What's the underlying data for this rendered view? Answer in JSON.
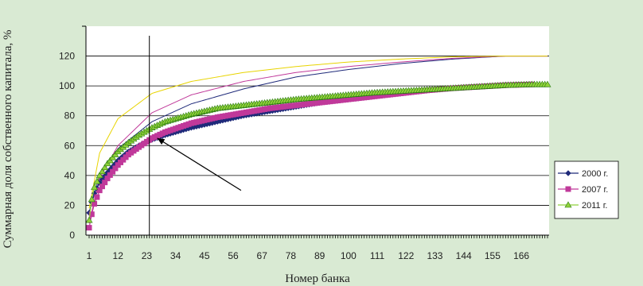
{
  "chart_data": {
    "type": "line",
    "xlabel": "Номер банка",
    "ylabel": "Суммарная доля собственного капитала, %",
    "x_ticks": [
      1,
      12,
      23,
      34,
      45,
      56,
      67,
      78,
      89,
      100,
      111,
      122,
      133,
      144,
      155,
      166
    ],
    "y_ticks": [
      0,
      20,
      40,
      60,
      80,
      100,
      120
    ],
    "xlim": [
      1,
      176
    ],
    "ylim": [
      0,
      140
    ],
    "grid": true,
    "legend_position": "right",
    "vertical_line_x": 24,
    "arrow": {
      "from": [
        59,
        30
      ],
      "to": [
        27,
        65
      ]
    },
    "series": [
      {
        "name": "2000 г.",
        "color": "#1f2a7a",
        "marker": "diamond",
        "x": [
          1,
          2,
          3,
          5,
          8,
          12,
          16,
          20,
          25,
          30,
          40,
          50,
          60,
          70,
          80,
          90,
          100,
          110,
          120,
          130,
          140,
          150,
          160,
          165
        ],
        "y": [
          15,
          22,
          28,
          35,
          42,
          50,
          56,
          60,
          64,
          67,
          72,
          76,
          80,
          83,
          86,
          89,
          91,
          93,
          95,
          97,
          98.5,
          99.5,
          100.5,
          101
        ]
      },
      {
        "name": "2007 г.",
        "color": "#c0399a",
        "marker": "square",
        "x": [
          1,
          2,
          3,
          5,
          8,
          12,
          16,
          20,
          25,
          30,
          40,
          50,
          60,
          70,
          80,
          90,
          100,
          110,
          120,
          130,
          140,
          150,
          160,
          170
        ],
        "y": [
          5,
          14,
          21,
          30,
          38,
          47,
          54,
          59,
          65,
          69,
          75,
          79,
          82,
          85,
          87,
          89,
          91,
          93,
          95,
          97,
          98.5,
          99.5,
          100.5,
          101
        ]
      },
      {
        "name": "2011 г.",
        "color": "#8fd13a",
        "marker": "triangle",
        "x": [
          1,
          2,
          3,
          5,
          8,
          12,
          16,
          20,
          25,
          30,
          40,
          50,
          60,
          70,
          80,
          90,
          100,
          110,
          120,
          130,
          140,
          150,
          160,
          170,
          176
        ],
        "y": [
          10,
          24,
          32,
          40,
          48,
          56,
          62,
          67,
          72,
          76,
          81,
          85,
          87,
          89,
          91,
          92.5,
          94,
          95.5,
          96.5,
          97.5,
          98.5,
          99.5,
          100.5,
          101,
          101
        ]
      }
    ]
  },
  "overlay_lines": [
    {
      "color": "#1f2a7a",
      "x": [
        1,
        5,
        12,
        25,
        40,
        60,
        80,
        100,
        120,
        140,
        160,
        176
      ],
      "y": [
        15,
        40,
        58,
        76,
        88,
        98,
        106,
        111,
        115,
        118,
        120,
        120
      ]
    },
    {
      "color": "#c0399a",
      "x": [
        1,
        5,
        12,
        25,
        40,
        60,
        80,
        100,
        120,
        140,
        160,
        176
      ],
      "y": [
        8,
        38,
        60,
        82,
        94,
        103,
        109,
        113,
        116,
        118.5,
        120,
        120
      ]
    },
    {
      "color": "#e8d400",
      "x": [
        1,
        5,
        12,
        25,
        40,
        60,
        80,
        100,
        120,
        140,
        160,
        176
      ],
      "y": [
        18,
        55,
        78,
        95,
        103,
        109,
        113,
        116,
        118,
        119.5,
        120,
        120
      ]
    }
  ]
}
